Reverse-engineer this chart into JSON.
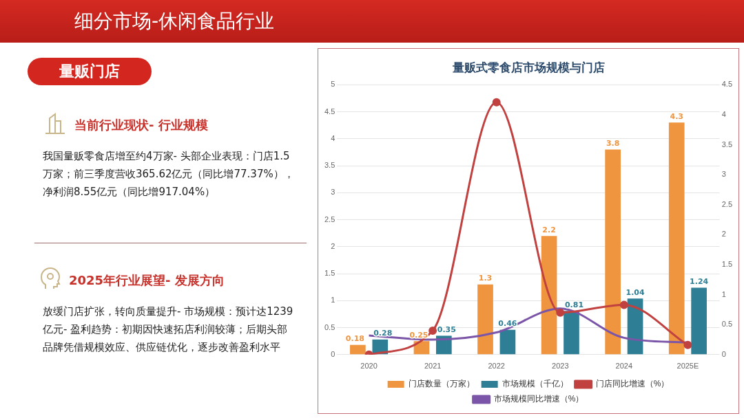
{
  "chart_data": [
    {
      "type": "other",
      "title": "细分市场-休闲食品行业",
      "subtitle": "量贩门店",
      "annotations": [
        "当前行业现状- 行业规模",
        "我国量贩零食店增至约4万家- 头部企业表现：门店1.5万家；前三季度营收365.62亿元（同比增77.37%），净利润8.55亿元（同比增917.04%）",
        "2025年行业展望- 发展方向",
        "放缓门店扩张，转向质量提升- 市场规模：预计达1239亿元- 盈利趋势：初期因快速拓店利润较薄；后期头部品牌凭借规模效应、供应链优化，逐步改善盈利水平"
      ]
    },
    {
      "type": "bar",
      "title": "量贩式零食店市场规模与门店",
      "categories": [
        "2020",
        "2021",
        "2022",
        "2023",
        "2024",
        "2025E"
      ],
      "series": [
        {
          "name": "门店数量（万家）",
          "color": "#f0953f",
          "values": [
            0.18,
            0.25,
            1.3,
            2.2,
            3.8,
            4.3
          ],
          "value_labels": [
            "0.18",
            "0.25",
            "1.3",
            "2.2",
            "3.8",
            "4.3"
          ]
        },
        {
          "name": "市场规模（千亿）",
          "color": "#2e7f96",
          "values": [
            0.28,
            0.35,
            0.46,
            0.81,
            1.04,
            1.24
          ],
          "value_labels": [
            "0.28",
            "0.35",
            "0.46",
            "0.81",
            "1.04",
            "1.24"
          ]
        },
        {
          "name": "门店同比增速（%）",
          "type": "line",
          "axis": "y2",
          "marker": "circle",
          "color": "#c0413f",
          "values": [
            0,
            0.4,
            4.21,
            0.7,
            0.83,
            0.16
          ]
        },
        {
          "name": "市场规模同比增速（%）",
          "type": "line",
          "axis": "y2",
          "marker": "none",
          "color": "#7a55a8",
          "values": [
            0.32,
            0.25,
            0.37,
            0.77,
            0.28,
            0.2
          ]
        }
      ],
      "ylim": [
        0,
        5
      ],
      "yticks": [
        0,
        0.5,
        1,
        1.5,
        2,
        2.5,
        3,
        3.5,
        4,
        4.5,
        5
      ],
      "y2lim": [
        0,
        4.5
      ],
      "y2ticks": [
        0,
        0.5,
        1,
        1.5,
        2,
        2.5,
        3,
        3.5,
        4,
        4.5
      ],
      "grid": "y",
      "legend": "bottom"
    }
  ]
}
